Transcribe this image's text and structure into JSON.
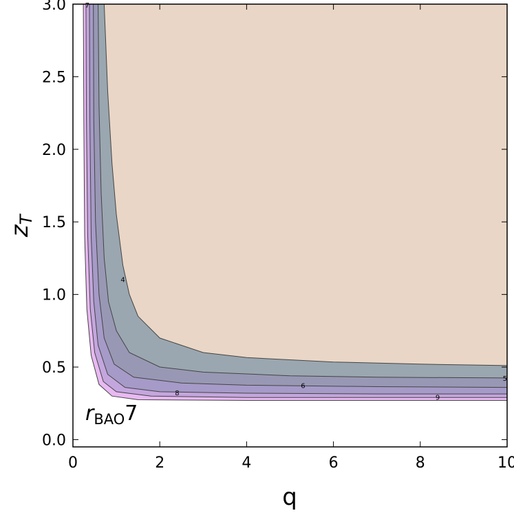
{
  "chart_data": {
    "type": "area",
    "xlabel": "q",
    "ylabel": "z",
    "ylabel_sub": "T",
    "xlim": [
      0,
      10
    ],
    "ylim": [
      -0.05,
      3.0
    ],
    "x_ticks": [
      0,
      2,
      4,
      6,
      8,
      10
    ],
    "x_tick_labels": [
      "0",
      "2",
      "4",
      "6",
      "8",
      "10"
    ],
    "y_ticks": [
      0.0,
      0.5,
      1.0,
      1.5,
      2.0,
      2.5,
      3.0
    ],
    "y_tick_labels": [
      "0.0",
      "0.5",
      "1.0",
      "1.5",
      "2.0",
      "2.5",
      "3.0"
    ],
    "annotation": {
      "main": "r",
      "sub": "BAO",
      "suffix": "7"
    },
    "colors": {
      "region_top": "#e9d6c6",
      "band_4_5": "#a9b8ad",
      "band_5_6": "#9aa7b0",
      "band_6_7": "#9898b5",
      "band_7_8": "#a69ac8",
      "band_8_9": "#c4a6de",
      "band_9_plus": "#e8b9f2",
      "contour_line": "#444444"
    },
    "contours": [
      {
        "level": "4",
        "label_at": [
          1.15,
          1.1
        ],
        "points": [
          [
            0.72,
            3.0
          ],
          [
            0.8,
            2.4
          ],
          [
            0.9,
            1.9
          ],
          [
            1.0,
            1.55
          ],
          [
            1.15,
            1.2
          ],
          [
            1.3,
            1.0
          ],
          [
            1.5,
            0.85
          ],
          [
            2.0,
            0.7
          ],
          [
            3.0,
            0.6
          ],
          [
            4.0,
            0.565
          ],
          [
            6.0,
            0.535
          ],
          [
            8.0,
            0.52
          ],
          [
            10.0,
            0.51
          ]
        ]
      },
      {
        "level": "5",
        "label_at": [
          9.95,
          0.42
        ],
        "points": [
          [
            0.58,
            3.0
          ],
          [
            0.6,
            2.3
          ],
          [
            0.65,
            1.7
          ],
          [
            0.72,
            1.25
          ],
          [
            0.82,
            0.95
          ],
          [
            1.0,
            0.75
          ],
          [
            1.3,
            0.6
          ],
          [
            2.0,
            0.5
          ],
          [
            3.0,
            0.465
          ],
          [
            5.0,
            0.44
          ],
          [
            7.0,
            0.43
          ],
          [
            10.0,
            0.425
          ]
        ]
      },
      {
        "level": "6",
        "label_at": [
          5.3,
          0.37
        ],
        "points": [
          [
            0.47,
            3.0
          ],
          [
            0.48,
            2.2
          ],
          [
            0.52,
            1.5
          ],
          [
            0.6,
            1.0
          ],
          [
            0.72,
            0.7
          ],
          [
            0.95,
            0.52
          ],
          [
            1.4,
            0.43
          ],
          [
            2.5,
            0.39
          ],
          [
            4.0,
            0.375
          ],
          [
            7.0,
            0.365
          ],
          [
            10.0,
            0.36
          ]
        ]
      },
      {
        "level": "7",
        "label_at": [
          0.33,
          2.99
        ],
        "points": [
          [
            0.38,
            3.0
          ],
          [
            0.39,
            2.2
          ],
          [
            0.42,
            1.4
          ],
          [
            0.48,
            0.95
          ],
          [
            0.58,
            0.65
          ],
          [
            0.8,
            0.45
          ],
          [
            1.2,
            0.36
          ],
          [
            2.0,
            0.33
          ],
          [
            4.0,
            0.32
          ],
          [
            7.0,
            0.315
          ],
          [
            10.0,
            0.315
          ]
        ]
      },
      {
        "level": "8",
        "label_at": [
          2.4,
          0.32
        ],
        "points": [
          [
            0.3,
            3.0
          ],
          [
            0.31,
            2.2
          ],
          [
            0.34,
            1.4
          ],
          [
            0.4,
            0.9
          ],
          [
            0.5,
            0.6
          ],
          [
            0.7,
            0.4
          ],
          [
            1.0,
            0.33
          ],
          [
            1.8,
            0.3
          ],
          [
            4.0,
            0.29
          ],
          [
            7.0,
            0.29
          ],
          [
            10.0,
            0.29
          ]
        ]
      },
      {
        "level": "9",
        "label_at": [
          8.4,
          0.29
        ],
        "points": [
          [
            0.24,
            3.0
          ],
          [
            0.25,
            2.2
          ],
          [
            0.27,
            1.4
          ],
          [
            0.32,
            0.9
          ],
          [
            0.42,
            0.58
          ],
          [
            0.6,
            0.38
          ],
          [
            0.9,
            0.3
          ],
          [
            1.5,
            0.275
          ],
          [
            4.0,
            0.27
          ],
          [
            7.0,
            0.27
          ],
          [
            10.0,
            0.27
          ]
        ]
      }
    ]
  }
}
